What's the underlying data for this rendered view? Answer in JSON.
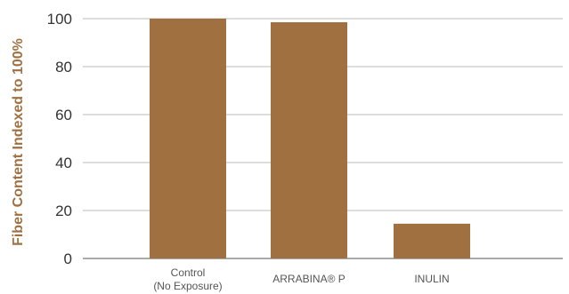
{
  "chart_data": {
    "type": "bar",
    "ylabel": "Fiber Content Indexed to 100%",
    "categories": [
      [
        "Control",
        "(No Exposure)"
      ],
      [
        "ARRABINA® P"
      ],
      [
        "INULIN"
      ]
    ],
    "values": [
      100,
      98.5,
      14.5
    ],
    "ylim": [
      0,
      100
    ],
    "yticks": [
      "0",
      "20",
      "40",
      "60",
      "80",
      "100"
    ],
    "grid": true,
    "colors": {
      "bar": "#A07040",
      "ylabel": "#A07040",
      "grid": "#bbbbbb"
    }
  }
}
